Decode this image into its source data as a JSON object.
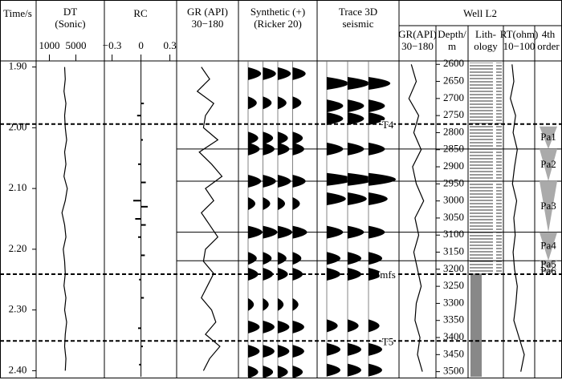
{
  "time_axis": {
    "title": "Time/s",
    "ylim": [
      1.89,
      2.41
    ],
    "yticks": [
      {
        "value": 1.9,
        "label": "1.90"
      },
      {
        "value": 2,
        "label": "2.00"
      },
      {
        "value": 2.1,
        "label": "2.10"
      },
      {
        "value": 2.2,
        "label": "2.20"
      },
      {
        "value": 2.3,
        "label": "2.30"
      },
      {
        "value": 2.4,
        "label": "2.40"
      }
    ]
  },
  "log_time": [
    1.9,
    1.92,
    1.94,
    1.96,
    1.98,
    2.0,
    2.02,
    2.04,
    2.06,
    2.08,
    2.1,
    2.12,
    2.14,
    2.16,
    2.18,
    2.2,
    2.22,
    2.24,
    2.26,
    2.28,
    2.3,
    2.32,
    2.34,
    2.36,
    2.38,
    2.4
  ],
  "tracks": {
    "dt": {
      "title": [
        "DT",
        "(Sonic)"
      ],
      "xlim": [
        -1000,
        9300
      ],
      "xticks": [
        1000,
        5000
      ],
      "values": [
        3300,
        3400,
        3200,
        3500,
        3300,
        3400,
        3600,
        3300,
        3500,
        3200,
        3700,
        3400,
        2900,
        3300,
        3500,
        3100,
        3300,
        3400,
        3200,
        3500,
        3300,
        3600,
        3400,
        3300,
        3500,
        3400
      ]
    },
    "rc": {
      "title": [
        "RC"
      ],
      "xlim": [
        -0.38,
        0.37
      ],
      "xticks": [
        {
          "value": -0.3,
          "label": "−0.3"
        },
        0,
        0.3
      ],
      "time": [
        1.96,
        1.98,
        2.02,
        2.06,
        2.09,
        2.12,
        2.13,
        2.15,
        2.16,
        2.18,
        2.21,
        2.25,
        2.28,
        2.33,
        2.36,
        2.39
      ],
      "values": [
        0.03,
        -0.04,
        0.02,
        -0.03,
        0.05,
        -0.08,
        0.07,
        -0.06,
        0.05,
        -0.03,
        0.04,
        -0.02,
        0.03,
        -0.03,
        0.02,
        -0.02
      ]
    },
    "gr": {
      "title": [
        "GR (API)",
        "30−180"
      ],
      "xlim": [
        30,
        180
      ],
      "values": [
        90,
        110,
        80,
        120,
        100,
        95,
        130,
        85,
        115,
        140,
        100,
        120,
        90,
        110,
        130,
        100,
        95,
        120,
        105,
        90,
        115,
        125,
        100,
        135,
        110,
        95
      ]
    },
    "synthetic": {
      "title": [
        "Synthetic (+)",
        "(Ricker 20)"
      ],
      "traces": 4,
      "events_time": [
        1.911,
        1.959,
        2.017,
        2.035,
        2.088,
        2.125,
        2.172,
        2.215,
        2.241,
        2.291,
        2.328,
        2.368,
        2.402
      ],
      "events_amp": [
        0.9,
        0.6,
        0.7,
        0.8,
        0.9,
        0.5,
        1.0,
        0.6,
        0.7,
        0.4,
        0.8,
        0.8,
        0.7
      ]
    },
    "seismic": {
      "title": [
        "Trace 3D",
        "seismic"
      ],
      "traces": 3,
      "events_time": [
        1.927,
        1.964,
        1.985,
        2.035,
        2.085,
        2.117,
        2.172,
        2.215,
        2.241,
        2.326,
        2.365,
        2.399
      ],
      "events_amp": [
        0.8,
        0.6,
        0.6,
        0.6,
        1.0,
        0.7,
        0.6,
        0.5,
        0.5,
        0.4,
        0.5,
        0.5
      ]
    }
  },
  "horizons": [
    {
      "name": "T4",
      "time": 1.994
    },
    {
      "name": "mfs",
      "time": 2.241
    },
    {
      "name": "T5",
      "time": 2.351
    }
  ],
  "sequence_boundaries": [
    2.035,
    2.088,
    2.172,
    2.219
  ],
  "well": {
    "title": "Well L2",
    "depth_title": [
      "Depth/",
      "m"
    ],
    "ylim": [
      2590,
      3515
    ],
    "yticks": [
      2600,
      2650,
      2700,
      2750,
      2800,
      2850,
      2900,
      2950,
      3000,
      3050,
      3100,
      3150,
      3200,
      3250,
      3300,
      3350,
      3400,
      3450,
      3500
    ],
    "gr": {
      "title": [
        "GR(API)",
        "30−180"
      ],
      "xlim": [
        30,
        180
      ],
      "values": [
        80,
        100,
        70,
        110,
        90,
        120,
        85,
        100,
        130,
        95,
        110,
        90,
        105,
        120,
        100,
        95,
        115,
        105,
        125
      ]
    },
    "lithology": {
      "title": [
        "Lith-",
        "ology"
      ]
    },
    "rt": {
      "title": [
        "RT(ohm)",
        "10−100"
      ],
      "xlim": [
        10,
        100
      ],
      "values": [
        35,
        40,
        30,
        45,
        38,
        50,
        42,
        36,
        48,
        40,
        44,
        38,
        42,
        50,
        46,
        40,
        55,
        70,
        60
      ]
    },
    "order4": {
      "title": [
        "4th",
        "order"
      ],
      "units": [
        {
          "name": "Pa1",
          "top": 2782,
          "base": 2848
        },
        {
          "name": "Pa2",
          "top": 2848,
          "base": 2942
        },
        {
          "name": "Pa3",
          "top": 2942,
          "base": 3092
        },
        {
          "name": "Pa4",
          "top": 3092,
          "base": 3175
        },
        {
          "name": "Pa5",
          "top": 3175,
          "base": 3200
        },
        {
          "name": "Pa6",
          "top": 3200,
          "base": 3214
        }
      ]
    }
  }
}
